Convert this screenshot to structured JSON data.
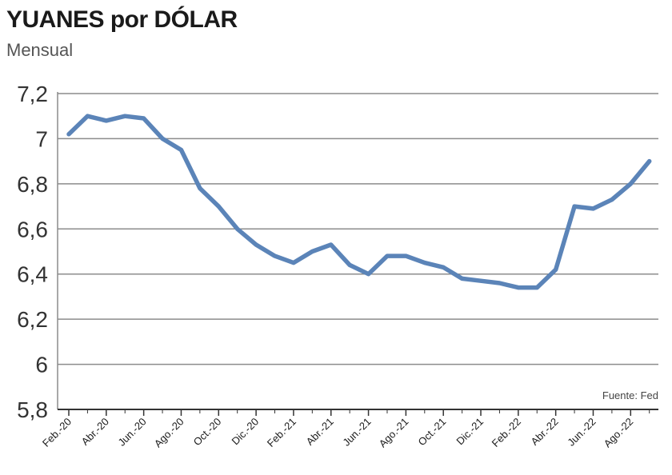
{
  "title": "YUANES por DÓLAR",
  "subtitle": "Mensual",
  "source": "Fuente: Fed",
  "colors": {
    "line": "#5b84b8",
    "grid": "#8c8c8c",
    "axis": "#333333"
  },
  "chart_data": {
    "type": "line",
    "title": "YUANES por DÓLAR",
    "subtitle": "Mensual",
    "ylim": [
      5.8,
      7.2
    ],
    "yticks": [
      "7,2",
      "7",
      "6,8",
      "6,6",
      "6,4",
      "6,2",
      "6",
      "5,8"
    ],
    "ytick_values": [
      7.2,
      7.0,
      6.8,
      6.6,
      6.4,
      6.2,
      6.0,
      5.8
    ],
    "xtick_labels": [
      "Feb.-20",
      "Abr.-20",
      "Jun.-20",
      "Ago.-20",
      "Oct.-20",
      "Dic.-20",
      "Feb.-21",
      "Abr.-21",
      "Jun.-21",
      "Ago.-21",
      "Oct.-21",
      "Dic.-21",
      "Feb.-22",
      "Abr.-22",
      "Jun.-22",
      "Ago.-22"
    ],
    "grid": true,
    "series": [
      {
        "x": [
          "Feb.-20",
          "Mar.-20",
          "Abr.-20",
          "May.-20",
          "Jun.-20",
          "Jul.-20",
          "Ago.-20",
          "Sep.-20",
          "Oct.-20",
          "Nov.-20",
          "Dic.-20",
          "Ene.-21",
          "Feb.-21",
          "Mar.-21",
          "Abr.-21",
          "May.-21",
          "Jun.-21",
          "Jul.-21",
          "Ago.-21",
          "Sep.-21",
          "Oct.-21",
          "Nov.-21",
          "Dic.-21",
          "Ene.-22",
          "Feb.-22",
          "Mar.-22",
          "Abr.-22",
          "May.-22",
          "Jun.-22",
          "Jul.-22",
          "Ago.-22",
          "Sep.-22"
        ],
        "values": [
          7.02,
          7.1,
          7.08,
          7.1,
          7.09,
          7.0,
          6.95,
          6.78,
          6.7,
          6.6,
          6.53,
          6.48,
          6.45,
          6.5,
          6.53,
          6.44,
          6.4,
          6.48,
          6.48,
          6.45,
          6.43,
          6.38,
          6.37,
          6.36,
          6.34,
          6.34,
          6.42,
          6.7,
          6.69,
          6.73,
          6.8,
          6.9
        ]
      }
    ]
  }
}
